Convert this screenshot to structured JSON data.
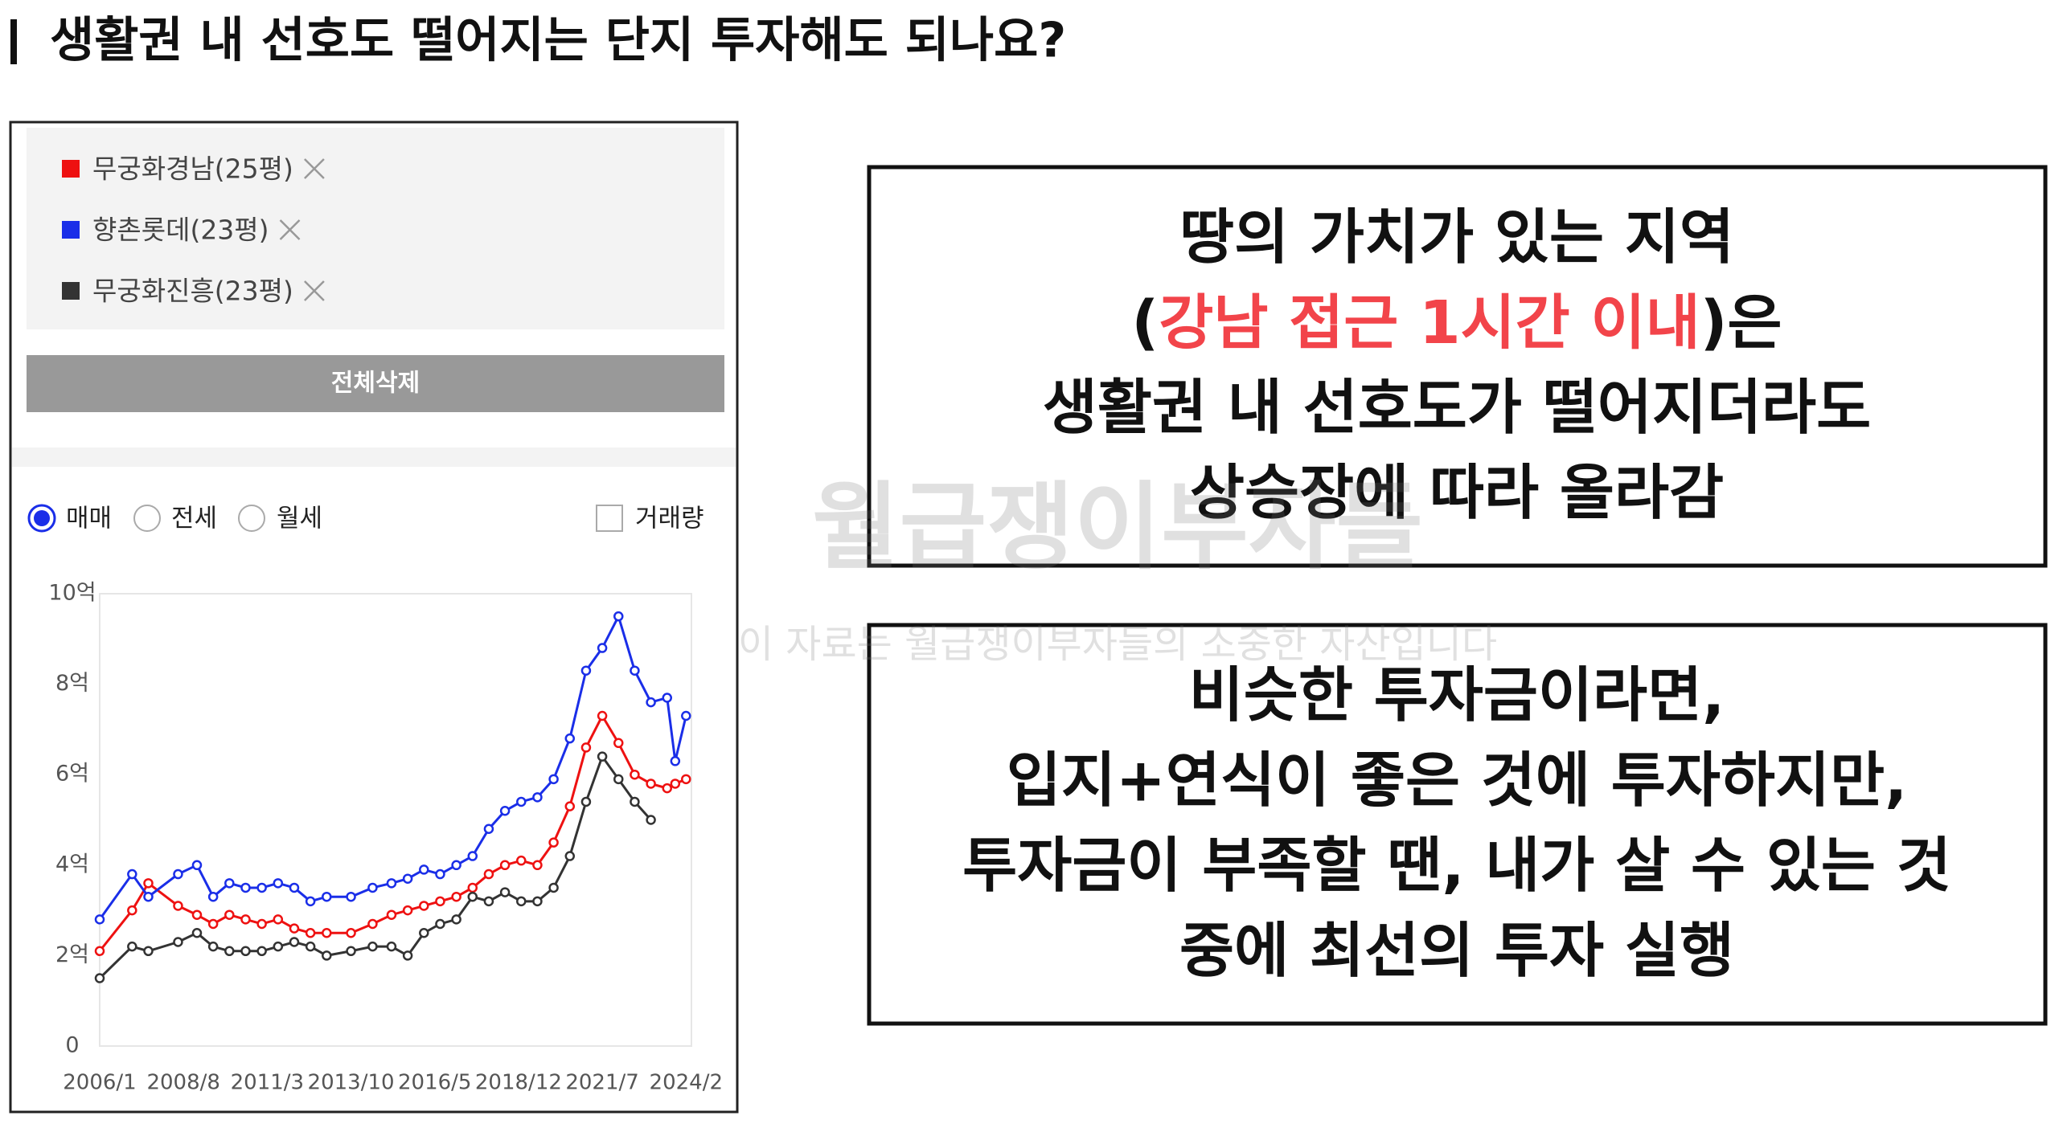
{
  "header": {
    "title": "생활권 내 선호도 떨어지는 단지 투자해도 되나요?"
  },
  "panel": {
    "delete_all": "전체삭제",
    "options": [
      "매매",
      "전세",
      "월세"
    ],
    "volume": "거래량"
  },
  "chart_data": {
    "type": "line",
    "x": [
      "2006/1",
      "2007/1",
      "2007/7",
      "2008/6",
      "2009/1",
      "2009/7",
      "2010/1",
      "2010/7",
      "2011/1",
      "2011/7",
      "2012/1",
      "2012/7",
      "2013/1",
      "2013/10",
      "2014/6",
      "2015/1",
      "2015/7",
      "2016/1",
      "2016/7",
      "2017/1",
      "2017/7",
      "2018/1",
      "2018/7",
      "2019/1",
      "2019/7",
      "2020/1",
      "2020/7",
      "2021/1",
      "2021/7",
      "2022/1",
      "2022/7",
      "2023/1",
      "2023/7",
      "2023/10",
      "2024/2"
    ],
    "series": [
      {
        "name": "무궁화경남(25평)",
        "color": "#ee1111",
        "values": [
          2.1,
          3.0,
          3.6,
          3.1,
          2.9,
          2.7,
          2.9,
          2.8,
          2.7,
          2.8,
          2.6,
          2.5,
          2.5,
          2.5,
          2.7,
          2.9,
          3.0,
          3.1,
          3.2,
          3.3,
          3.5,
          3.8,
          4.0,
          4.1,
          4.0,
          4.5,
          5.3,
          6.6,
          7.3,
          6.7,
          6.0,
          5.8,
          5.7,
          5.8,
          5.9
        ]
      },
      {
        "name": "향촌롯데(23평)",
        "color": "#1a2ee8",
        "values": [
          2.8,
          3.8,
          3.3,
          3.8,
          4.0,
          3.3,
          3.6,
          3.5,
          3.5,
          3.6,
          3.5,
          3.2,
          3.3,
          3.3,
          3.5,
          3.6,
          3.7,
          3.9,
          3.8,
          4.0,
          4.2,
          4.8,
          5.2,
          5.4,
          5.5,
          5.9,
          6.8,
          8.3,
          8.8,
          9.5,
          8.3,
          7.6,
          7.7,
          6.3,
          7.3
        ]
      },
      {
        "name": "무궁화진흥(23평)",
        "color": "#333333",
        "values": [
          1.5,
          2.2,
          2.1,
          2.3,
          2.5,
          2.2,
          2.1,
          2.1,
          2.1,
          2.2,
          2.3,
          2.2,
          2.0,
          2.1,
          2.2,
          2.2,
          2.0,
          2.5,
          2.7,
          2.8,
          3.3,
          3.2,
          3.4,
          3.2,
          3.2,
          3.5,
          4.2,
          5.4,
          6.4,
          5.9,
          5.4,
          5.0,
          null,
          null,
          null
        ]
      }
    ],
    "xlim": [
      "2006/1",
      "2024/4"
    ],
    "xticks": [
      "2006/1",
      "2008/8",
      "2011/3",
      "2013/10",
      "2016/5",
      "2018/12",
      "2021/7",
      "2024/2"
    ],
    "ylim": [
      0,
      10
    ],
    "yticks": [
      0,
      {
        "value": 2,
        "label": "2억"
      },
      {
        "value": 4,
        "label": "4억"
      },
      {
        "value": 6,
        "label": "6억"
      },
      {
        "value": 8,
        "label": "8억"
      },
      {
        "value": 10,
        "label": "10억"
      }
    ],
    "grid": false
  },
  "box1": {
    "lines": [
      "땅의 가치가 있는 지역",
      {
        "before": "(",
        "highlight": "강남 접근 1시간 이내",
        "after": ")은"
      },
      "생활권 내 선호도가 떨어지더라도",
      "상승장에 따라 올라감"
    ]
  },
  "box2": {
    "lines": [
      "비슷한 투자금이라면,",
      "입지+연식이 좋은 것에 투자하지만,",
      "투자금이 부족할 땐, 내가 살 수 있는 것",
      "중에 최선의 투자 실행"
    ]
  },
  "watermark": {
    "brand": "월급쟁이부자들",
    "notice": "이 자료는 월급쟁이부자들의 소중한 자산입니다"
  }
}
